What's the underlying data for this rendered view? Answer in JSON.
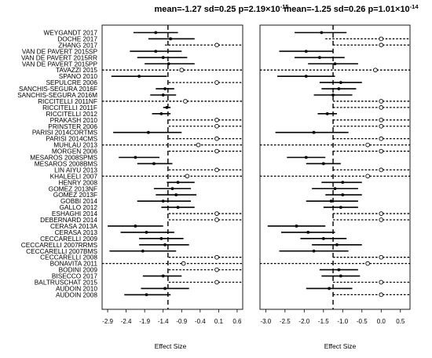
{
  "chart_data": [
    {
      "type": "forest",
      "title": "mean=-1.27 sd=0.25 p=2.19×10⁻¹⁵",
      "title_base": "mean=-1.27 sd=0.25 p=2.19×10",
      "title_exp": "-15",
      "xlabel": "Effect Size",
      "xticks": [
        "-2.9",
        "-2.4",
        "-1.9",
        "-1.4",
        "-0.9",
        "-0.4",
        "0.1",
        "0.6"
      ],
      "xlim": [
        -3.05,
        0.75
      ],
      "reference_line": -1.27,
      "studies": [
        {
          "label": "WEYGANDT 2017",
          "est": -1.6,
          "lo": -2.2,
          "hi": -1.0,
          "truncated": false
        },
        {
          "label": "DOCHE 2017",
          "est": -1.2,
          "lo": -1.8,
          "hi": -0.55,
          "truncated": false
        },
        {
          "label": "ZHANG 2017",
          "est": 0.05,
          "lo": -1.35,
          "hi": 0.75,
          "truncated": true
        },
        {
          "label": "VAN DE PAVERT 2015SP",
          "est": -1.6,
          "lo": -2.3,
          "hi": -0.9,
          "truncated": false
        },
        {
          "label": "VAN DE PAVERT 2015RR",
          "est": -1.4,
          "lo": -2.1,
          "hi": -0.75,
          "truncated": false
        },
        {
          "label": "VAN DE PAVERT 2015PP",
          "est": -1.25,
          "lo": -1.9,
          "hi": -0.55,
          "truncated": false
        },
        {
          "label": "TAVAZZI 2015",
          "est": -0.9,
          "lo": -3.05,
          "hi": 0.75,
          "truncated": true
        },
        {
          "label": "SPANO 2010",
          "est": -2.05,
          "lo": -2.8,
          "hi": -1.3,
          "truncated": false
        },
        {
          "label": "SEPULCRE 2006",
          "est": 0.05,
          "lo": -1.25,
          "hi": 0.75,
          "truncated": true
        },
        {
          "label": "SANCHIS-SEGURA 2016F",
          "est": -1.35,
          "lo": -1.6,
          "hi": -1.1,
          "truncated": false
        },
        {
          "label": "SANCHIS-SEGURA 2016M",
          "est": -1.4,
          "lo": -1.75,
          "hi": -1.05,
          "truncated": false
        },
        {
          "label": "RICCITELLI 2011NF",
          "est": -0.8,
          "lo": -3.05,
          "hi": 0.75,
          "truncated": true
        },
        {
          "label": "RICCITELLI 2011F",
          "est": -1.3,
          "lo": -1.4,
          "hi": -1.2,
          "truncated": false
        },
        {
          "label": "RICCITELLI 2012",
          "est": -1.45,
          "lo": -1.7,
          "hi": -1.2,
          "truncated": false
        },
        {
          "label": "PRAKASH 2010",
          "est": 0.05,
          "lo": -1.25,
          "hi": 0.75,
          "truncated": true
        },
        {
          "label": "PRINSTER 2006",
          "est": 0.05,
          "lo": -1.25,
          "hi": 0.75,
          "truncated": true
        },
        {
          "label": "PARISI 2014CORTMS",
          "est": -1.8,
          "lo": -2.75,
          "hi": -0.9,
          "truncated": false
        },
        {
          "label": "PARISI 2014CMS",
          "est": 0.05,
          "lo": -1.25,
          "hi": 0.75,
          "truncated": true
        },
        {
          "label": "MUHLAU 2013",
          "est": -0.45,
          "lo": -3.05,
          "hi": 0.75,
          "truncated": true
        },
        {
          "label": "MORGEN 2006",
          "est": 0.05,
          "lo": -1.25,
          "hi": 0.75,
          "truncated": true
        },
        {
          "label": "MESAROS 2008SPMS",
          "est": -2.15,
          "lo": -2.6,
          "hi": -1.5,
          "truncated": false
        },
        {
          "label": "MESAROS 2008BMS",
          "est": -1.65,
          "lo": -2.1,
          "hi": -1.15,
          "truncated": false
        },
        {
          "label": "LIN AIYU 2013",
          "est": 0.05,
          "lo": -1.25,
          "hi": 0.75,
          "truncated": true
        },
        {
          "label": "KHALEELI 2007",
          "est": -0.75,
          "lo": -3.05,
          "hi": 0.75,
          "truncated": true
        },
        {
          "label": "HENRY 2008",
          "est": -1.0,
          "lo": -1.3,
          "hi": -0.55,
          "truncated": false
        },
        {
          "label": "GOMEZ 2013NF",
          "est": -1.15,
          "lo": -1.65,
          "hi": -0.65,
          "truncated": false
        },
        {
          "label": "GOMEZ 2013F",
          "est": -1.05,
          "lo": -1.6,
          "hi": -0.5,
          "truncated": false
        },
        {
          "label": "GOBBI 2014",
          "est": -1.4,
          "lo": -2.1,
          "hi": -0.65,
          "truncated": false
        },
        {
          "label": "GALLO 2012",
          "est": -1.0,
          "lo": -1.45,
          "hi": -0.55,
          "truncated": false
        },
        {
          "label": "ESHAGHI 2014",
          "est": 0.05,
          "lo": -1.25,
          "hi": 0.75,
          "truncated": true
        },
        {
          "label": "DEBERNARD 2014",
          "est": 0.05,
          "lo": -1.25,
          "hi": 0.75,
          "truncated": true
        },
        {
          "label": "CERASA 2013A",
          "est": -2.15,
          "lo": -2.9,
          "hi": -1.4,
          "truncated": false
        },
        {
          "label": "CERASA 2013",
          "est": -1.85,
          "lo": -2.55,
          "hi": -1.1,
          "truncated": false
        },
        {
          "label": "CECCARELLI 2009",
          "est": -1.45,
          "lo": -2.05,
          "hi": -0.85,
          "truncated": false
        },
        {
          "label": "CECCARELLI 2007RRMS",
          "est": -1.35,
          "lo": -2.05,
          "hi": -0.7,
          "truncated": false
        },
        {
          "label": "CECCARELLI 2007BMS",
          "est": -1.95,
          "lo": -2.85,
          "hi": -1.05,
          "truncated": false
        },
        {
          "label": "CECCARELLI 2008",
          "est": 0.05,
          "lo": -1.25,
          "hi": 0.75,
          "truncated": true
        },
        {
          "label": "BONAVITA 2011",
          "est": -0.85,
          "lo": -3.05,
          "hi": 0.75,
          "truncated": true
        },
        {
          "label": "BODINI 2009",
          "est": 0.05,
          "lo": -1.25,
          "hi": 0.75,
          "truncated": true
        },
        {
          "label": "BISECCO 2017",
          "est": -1.4,
          "lo": -1.95,
          "hi": -0.9,
          "truncated": false
        },
        {
          "label": "BALTRUSCHAT 2015",
          "est": 0.05,
          "lo": -1.25,
          "hi": 0.75,
          "truncated": true
        },
        {
          "label": "AUDOIN 2010",
          "est": -1.35,
          "lo": -2.0,
          "hi": -0.7,
          "truncated": false
        },
        {
          "label": "AUDOIN 2008",
          "est": -1.85,
          "lo": -2.45,
          "hi": -1.2,
          "truncated": false
        }
      ]
    },
    {
      "type": "forest",
      "title": "mean=-1.25 sd=0.26 p=1.01×10⁻¹⁴",
      "title_base": "mean=-1.25 sd=0.26 p=1.01×10",
      "title_exp": "-14",
      "xlabel": "Effect Size",
      "xticks": [
        "-3.0",
        "-2.5",
        "-2.0",
        "-1.5",
        "-1.0",
        "-0.5",
        "0.0",
        "0.5"
      ],
      "xlim": [
        -3.15,
        0.75
      ],
      "reference_line": -1.25,
      "studies": [
        {
          "est": -1.55,
          "lo": -2.25,
          "hi": -0.9,
          "truncated": false
        },
        {
          "est": 0.0,
          "lo": -1.45,
          "hi": 0.75,
          "truncated": true
        },
        {
          "est": 0.0,
          "lo": -1.25,
          "hi": 0.75,
          "truncated": true
        },
        {
          "est": -1.95,
          "lo": -2.65,
          "hi": -1.25,
          "truncated": false
        },
        {
          "est": -1.6,
          "lo": -2.25,
          "hi": -0.95,
          "truncated": false
        },
        {
          "est": -1.2,
          "lo": -1.9,
          "hi": -0.6,
          "truncated": false
        },
        {
          "est": -0.15,
          "lo": -3.15,
          "hi": 0.75,
          "truncated": true
        },
        {
          "est": -1.95,
          "lo": -2.7,
          "hi": -1.2,
          "truncated": false
        },
        {
          "est": -1.05,
          "lo": -1.6,
          "hi": -0.5,
          "truncated": false
        },
        {
          "est": -1.1,
          "lo": -1.55,
          "hi": -0.65,
          "truncated": false
        },
        {
          "est": -1.25,
          "lo": -1.75,
          "hi": -0.75,
          "truncated": false
        },
        {
          "est": 0.0,
          "lo": -1.25,
          "hi": 0.75,
          "truncated": true
        },
        {
          "est": 0.0,
          "lo": -1.25,
          "hi": 0.75,
          "truncated": true
        },
        {
          "est": -1.4,
          "lo": -1.65,
          "hi": -1.15,
          "truncated": false
        },
        {
          "est": 0.0,
          "lo": -1.25,
          "hi": 0.75,
          "truncated": true
        },
        {
          "est": 0.0,
          "lo": -1.25,
          "hi": 0.75,
          "truncated": true
        },
        {
          "est": -1.75,
          "lo": -2.75,
          "hi": -0.85,
          "truncated": false
        },
        {
          "est": 0.0,
          "lo": -1.25,
          "hi": 0.75,
          "truncated": true
        },
        {
          "est": -0.35,
          "lo": -3.15,
          "hi": 0.75,
          "truncated": true
        },
        {
          "est": 0.0,
          "lo": -1.25,
          "hi": 0.75,
          "truncated": true
        },
        {
          "est": -1.95,
          "lo": -2.45,
          "hi": -1.45,
          "truncated": false
        },
        {
          "est": -1.5,
          "lo": -1.95,
          "hi": -1.05,
          "truncated": false
        },
        {
          "est": 0.0,
          "lo": -1.25,
          "hi": 0.75,
          "truncated": true
        },
        {
          "est": -0.35,
          "lo": -3.15,
          "hi": 0.75,
          "truncated": true
        },
        {
          "est": -1.0,
          "lo": -1.55,
          "hi": -0.5,
          "truncated": false
        },
        {
          "est": -1.2,
          "lo": -1.8,
          "hi": -0.6,
          "truncated": false
        },
        {
          "est": -1.0,
          "lo": -1.45,
          "hi": -0.5,
          "truncated": false
        },
        {
          "est": -1.3,
          "lo": -1.95,
          "hi": -0.6,
          "truncated": false
        },
        {
          "est": -1.05,
          "lo": -1.5,
          "hi": -0.6,
          "truncated": false
        },
        {
          "est": 0.0,
          "lo": -1.25,
          "hi": 0.75,
          "truncated": true
        },
        {
          "est": 0.0,
          "lo": -1.25,
          "hi": 0.75,
          "truncated": true
        },
        {
          "est": -2.2,
          "lo": -2.95,
          "hi": -1.45,
          "truncated": false
        },
        {
          "est": -1.9,
          "lo": -2.6,
          "hi": -1.2,
          "truncated": false
        },
        {
          "est": -1.5,
          "lo": -2.1,
          "hi": -0.9,
          "truncated": false
        },
        {
          "est": -1.15,
          "lo": -1.8,
          "hi": -0.5,
          "truncated": false
        },
        {
          "est": -1.75,
          "lo": -2.65,
          "hi": -0.85,
          "truncated": false
        },
        {
          "est": 0.0,
          "lo": -1.25,
          "hi": 0.75,
          "truncated": true
        },
        {
          "est": -0.35,
          "lo": -3.15,
          "hi": 0.75,
          "truncated": true
        },
        {
          "est": -1.1,
          "lo": -1.6,
          "hi": -0.6,
          "truncated": false
        },
        {
          "est": -1.05,
          "lo": -1.55,
          "hi": -0.55,
          "truncated": false
        },
        {
          "est": 0.0,
          "lo": -1.25,
          "hi": 0.75,
          "truncated": true
        },
        {
          "est": -1.35,
          "lo": -1.95,
          "hi": -0.75,
          "truncated": false
        },
        {
          "est": 0.0,
          "lo": -1.25,
          "hi": 0.75,
          "truncated": true
        }
      ]
    }
  ]
}
